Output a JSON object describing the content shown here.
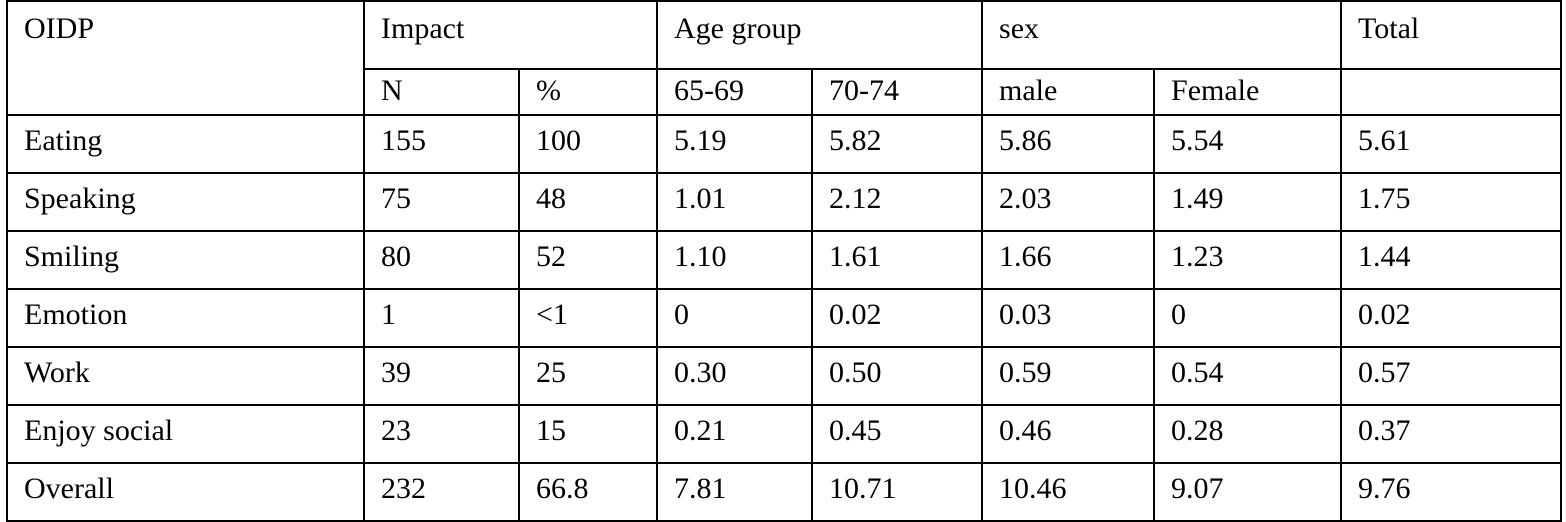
{
  "table": {
    "header_row1": {
      "oidp": "OIDP",
      "impact": "Impact",
      "age_group": "Age group",
      "sex": "sex",
      "total": "Total"
    },
    "header_row2": [
      "N",
      "%",
      "65-69",
      "70-74",
      "male",
      "Female"
    ],
    "rows": [
      [
        "Eating",
        "155",
        "100",
        "5.19",
        "5.82",
        "5.86",
        "5.54",
        "5.61"
      ],
      [
        "Speaking",
        "75",
        "48",
        "1.01",
        "2.12",
        "2.03",
        "1.49",
        "1.75"
      ],
      [
        "Smiling",
        "80",
        "52",
        "1.10",
        "1.61",
        "1.66",
        "1.23",
        "1.44"
      ],
      [
        "Emotion",
        "1",
        "<1",
        "0",
        "0.02",
        "0.03",
        "0",
        "0.02"
      ],
      [
        "Work",
        "39",
        "25",
        "0.30",
        "0.50",
        "0.59",
        "0.54",
        "0.57"
      ],
      [
        "Enjoy social",
        "23",
        "15",
        "0.21",
        "0.45",
        "0.46",
        "0.28",
        "0.37"
      ],
      [
        "Overall",
        "232",
        "66.8",
        "7.81",
        "10.71",
        "10.46",
        "9.07",
        "9.76"
      ]
    ]
  }
}
